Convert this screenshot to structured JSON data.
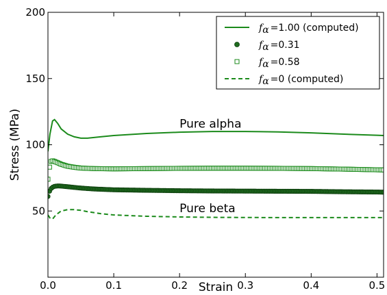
{
  "chart_data": {
    "type": "line",
    "title": "",
    "xlabel": "Strain",
    "ylabel": "Stress (MPa)",
    "xlim": [
      0.0,
      0.51
    ],
    "ylim": [
      0,
      200
    ],
    "xticks": [
      0.0,
      0.1,
      0.2,
      0.3,
      0.4,
      0.5
    ],
    "xtick_labels": [
      "0.0",
      "0.1",
      "0.2",
      "0.3",
      "0.4",
      "0.5"
    ],
    "yticks": [
      50,
      100,
      150,
      200
    ],
    "ytick_labels": [
      "50",
      "100",
      "150",
      "200"
    ],
    "grid": false,
    "legend_position": "top-right",
    "colors": {
      "series": "#1a8a1a"
    },
    "series": [
      {
        "name_prefix": "f",
        "name_sub": "α",
        "name_suffix": "=1.00 (computed)",
        "style": "solid",
        "x": [
          0.0,
          0.003,
          0.007,
          0.01,
          0.015,
          0.02,
          0.03,
          0.04,
          0.05,
          0.06,
          0.08,
          0.1,
          0.15,
          0.2,
          0.25,
          0.28,
          0.3,
          0.35,
          0.4,
          0.45,
          0.5,
          0.51
        ],
        "y": [
          95,
          108,
          118,
          119,
          116,
          112,
          108,
          106,
          105,
          105,
          106,
          107,
          108.5,
          109.5,
          110,
          110,
          110,
          109.7,
          109,
          108,
          107.2,
          107
        ]
      },
      {
        "name_prefix": "f",
        "name_sub": "α",
        "name_suffix": "=0.31",
        "style": "circles",
        "x": [
          0.0,
          0.002,
          0.004,
          0.006,
          0.008,
          0.01,
          0.015,
          0.02,
          0.03,
          0.04,
          0.05,
          0.07,
          0.1,
          0.15,
          0.2,
          0.25,
          0.3,
          0.35,
          0.4,
          0.45,
          0.5,
          0.51
        ],
        "y": [
          61,
          64.5,
          66.5,
          67.6,
          68.2,
          68.6,
          68.9,
          68.8,
          68.3,
          67.8,
          67.3,
          66.6,
          66,
          65.6,
          65.3,
          65.1,
          65,
          64.9,
          64.8,
          64.5,
          64.3,
          64.2
        ]
      },
      {
        "name_prefix": "f",
        "name_sub": "α",
        "name_suffix": "=0.58",
        "style": "squares",
        "x": [
          0.0,
          0.002,
          0.004,
          0.006,
          0.008,
          0.01,
          0.015,
          0.02,
          0.03,
          0.04,
          0.05,
          0.07,
          0.1,
          0.15,
          0.2,
          0.25,
          0.3,
          0.35,
          0.4,
          0.45,
          0.5,
          0.51
        ],
        "y": [
          74,
          82,
          87,
          88,
          87.8,
          87.4,
          86.4,
          85.3,
          83.8,
          83,
          82.4,
          82,
          81.8,
          82,
          82.2,
          82.3,
          82.3,
          82.2,
          82,
          81.6,
          81.1,
          81
        ]
      },
      {
        "name_prefix": "f",
        "name_sub": "α",
        "name_suffix": "=0 (computed)",
        "style": "dashed",
        "x": [
          0.0,
          0.004,
          0.008,
          0.012,
          0.02,
          0.03,
          0.04,
          0.05,
          0.06,
          0.08,
          0.1,
          0.15,
          0.2,
          0.25,
          0.3,
          0.35,
          0.4,
          0.45,
          0.5,
          0.51
        ],
        "y": [
          47,
          44,
          44.5,
          47,
          50,
          51,
          51,
          50.5,
          49.5,
          48,
          47,
          46,
          45.5,
          45.2,
          45.1,
          45,
          45,
          45,
          45,
          45
        ]
      }
    ],
    "annotations": [
      {
        "text": "Pure alpha",
        "x": 0.2,
        "y": 113
      },
      {
        "text": "Pure beta",
        "x": 0.2,
        "y": 49
      }
    ]
  }
}
